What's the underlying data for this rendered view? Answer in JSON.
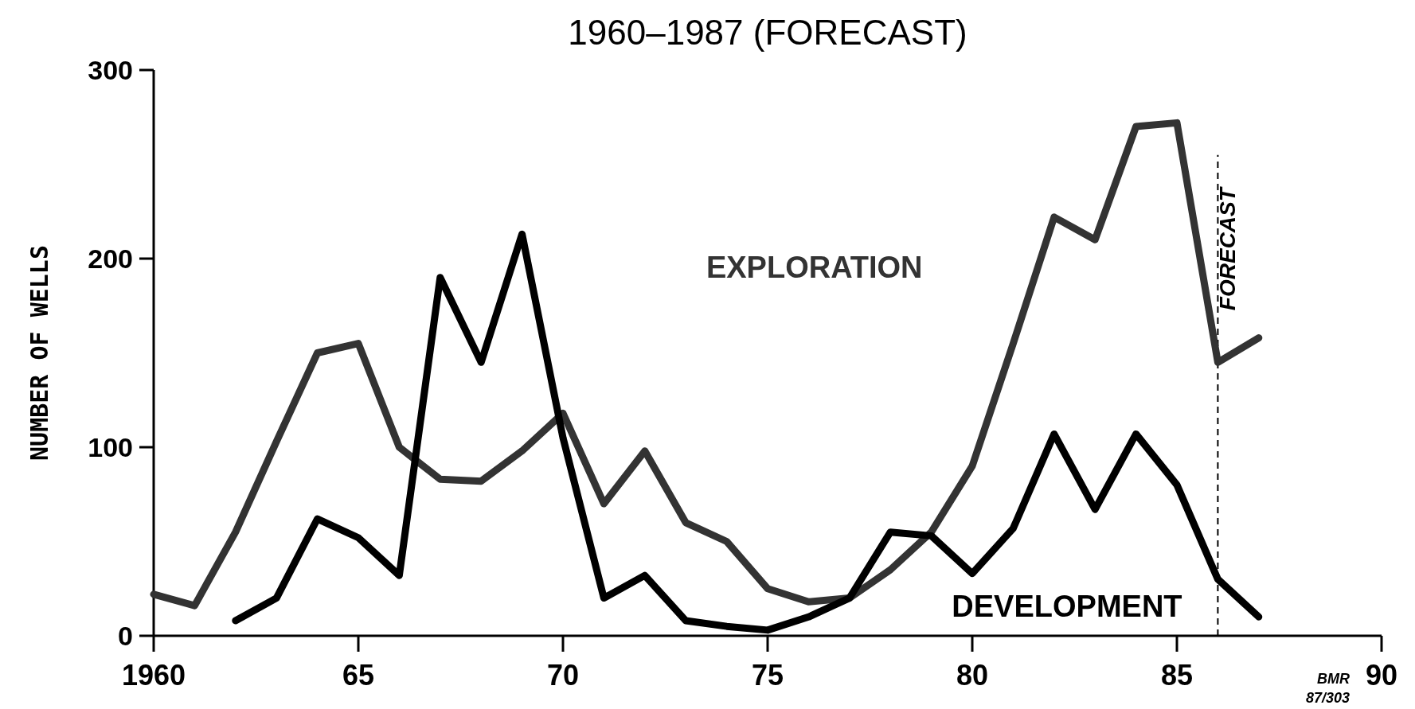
{
  "chart_data": {
    "type": "line",
    "title": "1960–1987 (FORECAST)",
    "ylabel": "NUMBER OF WELLS",
    "x": [
      1960,
      1961,
      1962,
      1963,
      1964,
      1965,
      1966,
      1967,
      1968,
      1969,
      1970,
      1971,
      1972,
      1973,
      1974,
      1975,
      1976,
      1977,
      1978,
      1979,
      1980,
      1981,
      1982,
      1983,
      1984,
      1985,
      1986,
      1987
    ],
    "series": [
      {
        "name": "EXPLORATION",
        "color": "#333333",
        "values": [
          22,
          16,
          55,
          103,
          150,
          155,
          100,
          83,
          82,
          98,
          118,
          70,
          98,
          60,
          50,
          25,
          18,
          20,
          35,
          55,
          90,
          155,
          222,
          210,
          270,
          272,
          145,
          158
        ]
      },
      {
        "name": "DEVELOPMENT",
        "color": "#000000",
        "values": [
          null,
          null,
          8,
          20,
          62,
          52,
          32,
          190,
          145,
          213,
          105,
          20,
          32,
          8,
          5,
          3,
          10,
          20,
          55,
          53,
          33,
          57,
          107,
          67,
          107,
          80,
          30,
          10
        ]
      }
    ],
    "xlim": [
      1960,
      1990
    ],
    "xticks": [
      {
        "value": 1960,
        "label": "1960"
      },
      {
        "value": 1965,
        "label": "65"
      },
      {
        "value": 1970,
        "label": "70"
      },
      {
        "value": 1975,
        "label": "75"
      },
      {
        "value": 1980,
        "label": "80"
      },
      {
        "value": 1985,
        "label": "85"
      },
      {
        "value": 1990,
        "label": "90"
      }
    ],
    "ylim": [
      0,
      300
    ],
    "yticks": [
      0,
      100,
      200,
      300
    ],
    "ref_lines": [
      {
        "axis": "x",
        "value": 1986,
        "label": "FORECAST",
        "line_style": "dashed",
        "color": "#000000"
      }
    ],
    "annotations": [
      "BMR 87/303"
    ],
    "grid": false,
    "marker": "none",
    "line_style": "solid"
  }
}
